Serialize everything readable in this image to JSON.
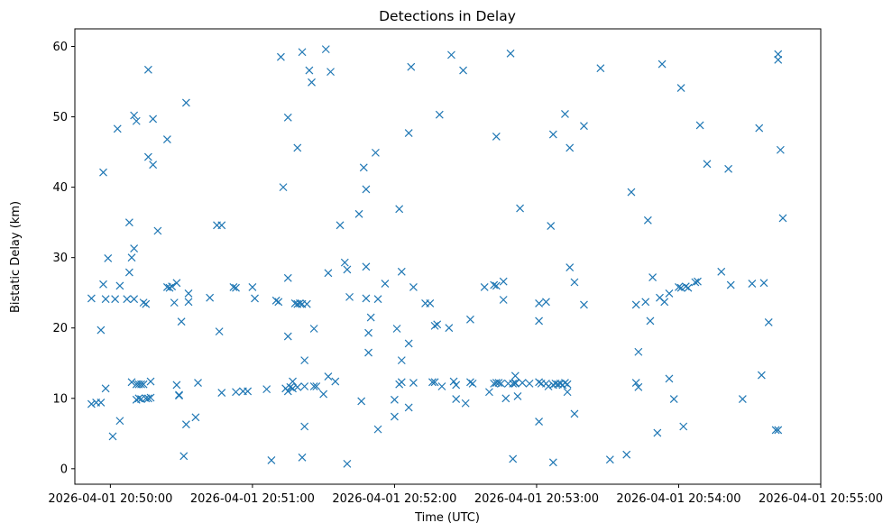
{
  "chart_data": {
    "type": "scatter",
    "title": "Detections in Delay",
    "xlabel": "Time (UTC)",
    "ylabel": "Bistatic Delay (km)",
    "marker": "x",
    "color": "#1f77b4",
    "grid": false,
    "legend": "none",
    "xlim": [
      "2026-04-01 20:49:45",
      "2026-04-01 20:55:00"
    ],
    "ylim": [
      -2.2,
      62.5
    ],
    "x_ticks": [
      "2026-04-01 20:50:00",
      "2026-04-01 20:51:00",
      "2026-04-01 20:52:00",
      "2026-04-01 20:53:00",
      "2026-04-01 20:54:00",
      "2026-04-01 20:55:00"
    ],
    "y_ticks": [
      0,
      10,
      20,
      30,
      40,
      50,
      60
    ],
    "points": [
      [
        "2026-04-01 20:49:52",
        24.2
      ],
      [
        "2026-04-01 20:49:52",
        9.2
      ],
      [
        "2026-04-01 20:49:54",
        9.4
      ],
      [
        "2026-04-01 20:49:56",
        9.4
      ],
      [
        "2026-04-01 20:49:56",
        19.7
      ],
      [
        "2026-04-01 20:49:57",
        26.2
      ],
      [
        "2026-04-01 20:49:57",
        42.1
      ],
      [
        "2026-04-01 20:49:58",
        11.4
      ],
      [
        "2026-04-01 20:49:58",
        24.1
      ],
      [
        "2026-04-01 20:49:59",
        29.9
      ],
      [
        "2026-04-01 20:50:01",
        4.6
      ],
      [
        "2026-04-01 20:50:02",
        24.1
      ],
      [
        "2026-04-01 20:50:03",
        48.3
      ],
      [
        "2026-04-01 20:50:04",
        26.0
      ],
      [
        "2026-04-01 20:50:04",
        6.8
      ],
      [
        "2026-04-01 20:50:07",
        24.1
      ],
      [
        "2026-04-01 20:50:08",
        35.0
      ],
      [
        "2026-04-01 20:50:08",
        27.9
      ],
      [
        "2026-04-01 20:50:09",
        12.3
      ],
      [
        "2026-04-01 20:50:09",
        30.0
      ],
      [
        "2026-04-01 20:50:10",
        50.2
      ],
      [
        "2026-04-01 20:50:10",
        31.3
      ],
      [
        "2026-04-01 20:50:10",
        24.1
      ],
      [
        "2026-04-01 20:50:11",
        49.4
      ],
      [
        "2026-04-01 20:50:11",
        12.0
      ],
      [
        "2026-04-01 20:50:11",
        9.8
      ],
      [
        "2026-04-01 20:50:12",
        12.0
      ],
      [
        "2026-04-01 20:50:12",
        10.0
      ],
      [
        "2026-04-01 20:50:13",
        12.0
      ],
      [
        "2026-04-01 20:50:13",
        9.9
      ],
      [
        "2026-04-01 20:50:14",
        23.6
      ],
      [
        "2026-04-01 20:50:14",
        12.0
      ],
      [
        "2026-04-01 20:50:15",
        23.4
      ],
      [
        "2026-04-01 20:50:15",
        10.0
      ],
      [
        "2026-04-01 20:50:16",
        44.3
      ],
      [
        "2026-04-01 20:50:16",
        56.7
      ],
      [
        "2026-04-01 20:50:16",
        10.0
      ],
      [
        "2026-04-01 20:50:17",
        12.4
      ],
      [
        "2026-04-01 20:50:17",
        10.1
      ],
      [
        "2026-04-01 20:50:18",
        49.7
      ],
      [
        "2026-04-01 20:50:18",
        43.2
      ],
      [
        "2026-04-01 20:50:20",
        33.8
      ],
      [
        "2026-04-01 20:50:24",
        46.8
      ],
      [
        "2026-04-01 20:50:24",
        25.8
      ],
      [
        "2026-04-01 20:50:25",
        25.7
      ],
      [
        "2026-04-01 20:50:26",
        25.9
      ],
      [
        "2026-04-01 20:50:27",
        23.6
      ],
      [
        "2026-04-01 20:50:28",
        26.4
      ],
      [
        "2026-04-01 20:50:28",
        11.9
      ],
      [
        "2026-04-01 20:50:29",
        10.4
      ],
      [
        "2026-04-01 20:50:29",
        10.5
      ],
      [
        "2026-04-01 20:50:30",
        20.9
      ],
      [
        "2026-04-01 20:50:31",
        1.8
      ],
      [
        "2026-04-01 20:50:32",
        52.0
      ],
      [
        "2026-04-01 20:50:32",
        6.3
      ],
      [
        "2026-04-01 20:50:33",
        24.9
      ],
      [
        "2026-04-01 20:50:33",
        23.7
      ],
      [
        "2026-04-01 20:50:36",
        7.3
      ],
      [
        "2026-04-01 20:50:37",
        12.2
      ],
      [
        "2026-04-01 20:50:42",
        24.3
      ],
      [
        "2026-04-01 20:50:45",
        34.6
      ],
      [
        "2026-04-01 20:50:46",
        19.5
      ],
      [
        "2026-04-01 20:50:47",
        34.6
      ],
      [
        "2026-04-01 20:50:47",
        10.8
      ],
      [
        "2026-04-01 20:50:52",
        25.8
      ],
      [
        "2026-04-01 20:50:53",
        25.7
      ],
      [
        "2026-04-01 20:50:53",
        10.9
      ],
      [
        "2026-04-01 20:50:56",
        11.0
      ],
      [
        "2026-04-01 20:50:58",
        11.0
      ],
      [
        "2026-04-01 20:51:00",
        25.8
      ],
      [
        "2026-04-01 20:51:01",
        24.2
      ],
      [
        "2026-04-01 20:51:06",
        11.3
      ],
      [
        "2026-04-01 20:51:08",
        1.2
      ],
      [
        "2026-04-01 20:51:10",
        23.9
      ],
      [
        "2026-04-01 20:51:11",
        23.7
      ],
      [
        "2026-04-01 20:51:12",
        58.5
      ],
      [
        "2026-04-01 20:51:13",
        40.0
      ],
      [
        "2026-04-01 20:51:14",
        11.4
      ],
      [
        "2026-04-01 20:51:15",
        49.9
      ],
      [
        "2026-04-01 20:51:15",
        27.1
      ],
      [
        "2026-04-01 20:51:15",
        18.8
      ],
      [
        "2026-04-01 20:51:15",
        11.0
      ],
      [
        "2026-04-01 20:51:16",
        11.6
      ],
      [
        "2026-04-01 20:51:17",
        12.4
      ],
      [
        "2026-04-01 20:51:17",
        11.4
      ],
      [
        "2026-04-01 20:51:18",
        23.5
      ],
      [
        "2026-04-01 20:51:19",
        11.6
      ],
      [
        "2026-04-01 20:51:19",
        23.4
      ],
      [
        "2026-04-01 20:51:19",
        45.6
      ],
      [
        "2026-04-01 20:51:20",
        23.5
      ],
      [
        "2026-04-01 20:51:21",
        59.2
      ],
      [
        "2026-04-01 20:51:21",
        23.4
      ],
      [
        "2026-04-01 20:51:21",
        1.6
      ],
      [
        "2026-04-01 20:51:22",
        6.0
      ],
      [
        "2026-04-01 20:51:22",
        15.4
      ],
      [
        "2026-04-01 20:51:22",
        11.7
      ],
      [
        "2026-04-01 20:51:23",
        23.4
      ],
      [
        "2026-04-01 20:51:24",
        56.6
      ],
      [
        "2026-04-01 20:51:25",
        54.9
      ],
      [
        "2026-04-01 20:51:26",
        11.7
      ],
      [
        "2026-04-01 20:51:26",
        19.9
      ],
      [
        "2026-04-01 20:51:27",
        11.7
      ],
      [
        "2026-04-01 20:51:30",
        10.6
      ],
      [
        "2026-04-01 20:51:31",
        59.6
      ],
      [
        "2026-04-01 20:51:32",
        27.8
      ],
      [
        "2026-04-01 20:51:32",
        13.1
      ],
      [
        "2026-04-01 20:51:33",
        56.4
      ],
      [
        "2026-04-01 20:51:35",
        12.4
      ],
      [
        "2026-04-01 20:51:37",
        34.6
      ],
      [
        "2026-04-01 20:51:39",
        29.3
      ],
      [
        "2026-04-01 20:51:40",
        28.3
      ],
      [
        "2026-04-01 20:51:40",
        0.7
      ],
      [
        "2026-04-01 20:51:41",
        24.4
      ],
      [
        "2026-04-01 20:51:45",
        36.2
      ],
      [
        "2026-04-01 20:51:46",
        9.6
      ],
      [
        "2026-04-01 20:51:47",
        42.8
      ],
      [
        "2026-04-01 20:51:48",
        39.7
      ],
      [
        "2026-04-01 20:51:48",
        28.7
      ],
      [
        "2026-04-01 20:51:48",
        24.2
      ],
      [
        "2026-04-01 20:51:49",
        19.3
      ],
      [
        "2026-04-01 20:51:49",
        16.5
      ],
      [
        "2026-04-01 20:51:50",
        21.5
      ],
      [
        "2026-04-01 20:51:52",
        44.9
      ],
      [
        "2026-04-01 20:51:53",
        24.1
      ],
      [
        "2026-04-01 20:51:53",
        5.6
      ],
      [
        "2026-04-01 20:51:56",
        26.3
      ],
      [
        "2026-04-01 20:52:00",
        9.8
      ],
      [
        "2026-04-01 20:52:00",
        7.4
      ],
      [
        "2026-04-01 20:52:01",
        19.9
      ],
      [
        "2026-04-01 20:52:02",
        36.9
      ],
      [
        "2026-04-01 20:52:02",
        12.0
      ],
      [
        "2026-04-01 20:52:03",
        28.0
      ],
      [
        "2026-04-01 20:52:03",
        15.4
      ],
      [
        "2026-04-01 20:52:03",
        12.3
      ],
      [
        "2026-04-01 20:52:06",
        47.7
      ],
      [
        "2026-04-01 20:52:06",
        17.8
      ],
      [
        "2026-04-01 20:52:06",
        8.7
      ],
      [
        "2026-04-01 20:52:07",
        57.1
      ],
      [
        "2026-04-01 20:52:08",
        25.8
      ],
      [
        "2026-04-01 20:52:08",
        12.2
      ],
      [
        "2026-04-01 20:52:13",
        23.5
      ],
      [
        "2026-04-01 20:52:15",
        23.5
      ],
      [
        "2026-04-01 20:52:16",
        12.3
      ],
      [
        "2026-04-01 20:52:17",
        12.3
      ],
      [
        "2026-04-01 20:52:17",
        20.3
      ],
      [
        "2026-04-01 20:52:18",
        20.5
      ],
      [
        "2026-04-01 20:52:19",
        50.3
      ],
      [
        "2026-04-01 20:52:20",
        11.7
      ],
      [
        "2026-04-01 20:52:23",
        20.0
      ],
      [
        "2026-04-01 20:52:24",
        58.8
      ],
      [
        "2026-04-01 20:52:25",
        12.4
      ],
      [
        "2026-04-01 20:52:26",
        9.9
      ],
      [
        "2026-04-01 20:52:26",
        11.9
      ],
      [
        "2026-04-01 20:52:29",
        56.6
      ],
      [
        "2026-04-01 20:52:30",
        9.3
      ],
      [
        "2026-04-01 20:52:32",
        12.3
      ],
      [
        "2026-04-01 20:52:32",
        21.2
      ],
      [
        "2026-04-01 20:52:33",
        12.1
      ],
      [
        "2026-04-01 20:52:38",
        25.8
      ],
      [
        "2026-04-01 20:52:40",
        10.9
      ],
      [
        "2026-04-01 20:52:42",
        26.1
      ],
      [
        "2026-04-01 20:52:42",
        12.1
      ],
      [
        "2026-04-01 20:52:43",
        47.2
      ],
      [
        "2026-04-01 20:52:43",
        26.0
      ],
      [
        "2026-04-01 20:52:43",
        12.2
      ],
      [
        "2026-04-01 20:52:44",
        12.2
      ],
      [
        "2026-04-01 20:52:45",
        12.1
      ],
      [
        "2026-04-01 20:52:46",
        26.6
      ],
      [
        "2026-04-01 20:52:46",
        24.0
      ],
      [
        "2026-04-01 20:52:47",
        10.0
      ],
      [
        "2026-04-01 20:52:48",
        12.1
      ],
      [
        "2026-04-01 20:52:49",
        59.0
      ],
      [
        "2026-04-01 20:52:50",
        12.1
      ],
      [
        "2026-04-01 20:52:50",
        1.4
      ],
      [
        "2026-04-01 20:52:51",
        12.1
      ],
      [
        "2026-04-01 20:52:51",
        13.2
      ],
      [
        "2026-04-01 20:52:51",
        12.2
      ],
      [
        "2026-04-01 20:52:52",
        10.3
      ],
      [
        "2026-04-01 20:52:53",
        37.0
      ],
      [
        "2026-04-01 20:52:54",
        12.2
      ],
      [
        "2026-04-01 20:52:57",
        12.1
      ],
      [
        "2026-04-01 20:53:01",
        6.7
      ],
      [
        "2026-04-01 20:53:01",
        21.0
      ],
      [
        "2026-04-01 20:53:01",
        23.5
      ],
      [
        "2026-04-01 20:53:01",
        12.3
      ],
      [
        "2026-04-01 20:53:02",
        12.1
      ],
      [
        "2026-04-01 20:53:04",
        12.1
      ],
      [
        "2026-04-01 20:53:04",
        23.7
      ],
      [
        "2026-04-01 20:53:05",
        11.7
      ],
      [
        "2026-04-01 20:53:06",
        34.5
      ],
      [
        "2026-04-01 20:53:07",
        47.5
      ],
      [
        "2026-04-01 20:53:07",
        11.9
      ],
      [
        "2026-04-01 20:53:07",
        0.9
      ],
      [
        "2026-04-01 20:53:08",
        12.1
      ],
      [
        "2026-04-01 20:53:09",
        12.0
      ],
      [
        "2026-04-01 20:53:10",
        12.1
      ],
      [
        "2026-04-01 20:53:11",
        11.9
      ],
      [
        "2026-04-01 20:53:12",
        50.4
      ],
      [
        "2026-04-01 20:53:12",
        12.2
      ],
      [
        "2026-04-01 20:53:13",
        12.0
      ],
      [
        "2026-04-01 20:53:13",
        10.9
      ],
      [
        "2026-04-01 20:53:14",
        28.6
      ],
      [
        "2026-04-01 20:53:14",
        45.6
      ],
      [
        "2026-04-01 20:53:16",
        26.5
      ],
      [
        "2026-04-01 20:53:16",
        7.8
      ],
      [
        "2026-04-01 20:53:20",
        23.3
      ],
      [
        "2026-04-01 20:53:20",
        48.7
      ],
      [
        "2026-04-01 20:53:27",
        56.9
      ],
      [
        "2026-04-01 20:53:31",
        1.3
      ],
      [
        "2026-04-01 20:53:38",
        2.0
      ],
      [
        "2026-04-01 20:53:40",
        39.3
      ],
      [
        "2026-04-01 20:53:42",
        23.3
      ],
      [
        "2026-04-01 20:53:42",
        12.2
      ],
      [
        "2026-04-01 20:53:43",
        11.6
      ],
      [
        "2026-04-01 20:53:43",
        16.6
      ],
      [
        "2026-04-01 20:53:46",
        23.7
      ],
      [
        "2026-04-01 20:53:47",
        35.3
      ],
      [
        "2026-04-01 20:53:48",
        21.0
      ],
      [
        "2026-04-01 20:53:49",
        27.2
      ],
      [
        "2026-04-01 20:53:51",
        5.1
      ],
      [
        "2026-04-01 20:53:52",
        24.3
      ],
      [
        "2026-04-01 20:53:53",
        57.5
      ],
      [
        "2026-04-01 20:53:54",
        23.7
      ],
      [
        "2026-04-01 20:53:56",
        12.8
      ],
      [
        "2026-04-01 20:53:56",
        24.9
      ],
      [
        "2026-04-01 20:53:58",
        9.9
      ],
      [
        "2026-04-01 20:54:00",
        25.8
      ],
      [
        "2026-04-01 20:54:01",
        54.1
      ],
      [
        "2026-04-01 20:54:01",
        25.7
      ],
      [
        "2026-04-01 20:54:02",
        6.0
      ],
      [
        "2026-04-01 20:54:03",
        25.9
      ],
      [
        "2026-04-01 20:54:04",
        25.7
      ],
      [
        "2026-04-01 20:54:07",
        26.5
      ],
      [
        "2026-04-01 20:54:08",
        26.6
      ],
      [
        "2026-04-01 20:54:09",
        48.8
      ],
      [
        "2026-04-01 20:54:12",
        43.3
      ],
      [
        "2026-04-01 20:54:18",
        28.0
      ],
      [
        "2026-04-01 20:54:21",
        42.6
      ],
      [
        "2026-04-01 20:54:22",
        26.1
      ],
      [
        "2026-04-01 20:54:27",
        9.9
      ],
      [
        "2026-04-01 20:54:31",
        26.3
      ],
      [
        "2026-04-01 20:54:34",
        48.4
      ],
      [
        "2026-04-01 20:54:35",
        13.3
      ],
      [
        "2026-04-01 20:54:36",
        26.4
      ],
      [
        "2026-04-01 20:54:38",
        20.8
      ],
      [
        "2026-04-01 20:54:41",
        5.5
      ],
      [
        "2026-04-01 20:54:42",
        5.5
      ],
      [
        "2026-04-01 20:54:42",
        58.9
      ],
      [
        "2026-04-01 20:54:42",
        58.1
      ],
      [
        "2026-04-01 20:54:43",
        45.3
      ],
      [
        "2026-04-01 20:54:44",
        35.6
      ]
    ]
  }
}
